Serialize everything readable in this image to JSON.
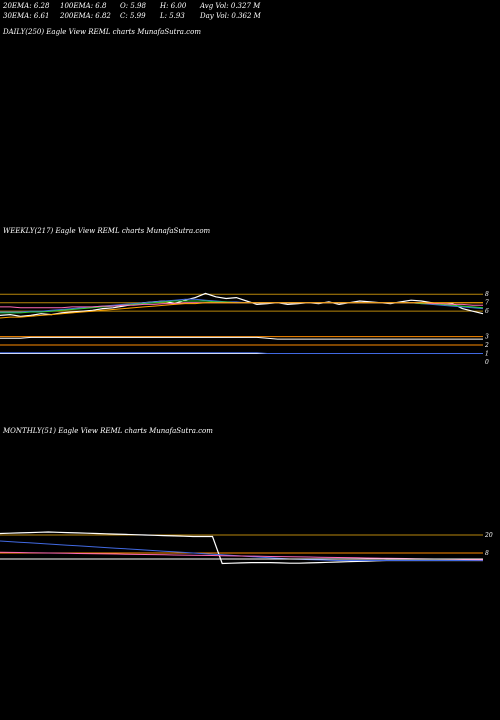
{
  "header": {
    "row1": [
      "20EMA: 6.28",
      "100EMA: 6.8",
      "O: 5.98",
      "H: 6.00",
      "Avg Vol: 0.327 M"
    ],
    "row2": [
      "30EMA: 6.61",
      "200EMA: 6.82",
      "C: 5.99",
      "L: 5.93",
      "Day Vol: 0.362 M"
    ]
  },
  "panels": {
    "daily": {
      "title": "DAILY(250) Eagle View REML charts MunafaSutra.com"
    },
    "weekly": {
      "title": "WEEKLY(217) Eagle View REML charts MunafaSutra.com"
    },
    "monthly": {
      "title": "MONTHLY(51) Eagle View REML charts MunafaSutra.com"
    }
  },
  "chart_data": [
    {
      "type": "line",
      "panel": "daily",
      "series": []
    },
    {
      "type": "line",
      "panel": "weekly",
      "yticks": [
        "8",
        "7",
        "6",
        "3",
        "2",
        "1",
        "0"
      ],
      "ylim": [
        0,
        8.5
      ],
      "series": [
        {
          "color": "#ffffff",
          "values": [
            5.5,
            5.6,
            5.4,
            5.5,
            5.7,
            5.6,
            5.8,
            5.9,
            6.0,
            6.1,
            6.3,
            6.4,
            6.6,
            6.8,
            7.0,
            7.1,
            7.2,
            6.9,
            7.3,
            7.6,
            8.1,
            7.7,
            7.5,
            7.6,
            7.2,
            6.8,
            6.9,
            7.0,
            6.8,
            6.9,
            7.0,
            6.9,
            7.1,
            6.8,
            7.0,
            7.2,
            7.1,
            7.0,
            6.9,
            7.1,
            7.3,
            7.2,
            7.0,
            6.8,
            6.9,
            6.3,
            6.0,
            5.7
          ]
        },
        {
          "color": "#4169e1",
          "values": [
            5.9,
            5.9,
            5.9,
            6.0,
            6.0,
            6.1,
            6.2,
            6.3,
            6.4,
            6.5,
            6.6,
            6.7,
            6.8,
            6.9,
            7.0,
            7.1,
            7.2,
            7.3,
            7.4,
            7.4,
            7.3,
            7.2,
            7.1,
            7.1,
            7.0,
            7.0,
            7.0,
            7.0,
            7.0,
            7.0,
            7.0,
            7.0,
            7.0,
            7.0,
            7.0,
            7.0,
            7.0,
            7.0,
            7.0,
            7.0,
            7.0,
            6.9,
            6.8,
            6.7,
            6.6,
            6.5,
            6.4,
            6.3
          ]
        },
        {
          "color": "#32cd32",
          "values": [
            5.8,
            5.8,
            5.8,
            5.9,
            5.9,
            6.0,
            6.1,
            6.2,
            6.3,
            6.4,
            6.5,
            6.6,
            6.7,
            6.8,
            6.9,
            7.0,
            7.1,
            7.2,
            7.2,
            7.2,
            7.2,
            7.1,
            7.1,
            7.0,
            7.0,
            7.0,
            7.0,
            7.0,
            7.0,
            7.0,
            7.0,
            7.0,
            7.0,
            7.0,
            7.0,
            7.0,
            7.0,
            7.0,
            7.0,
            7.0,
            7.0,
            6.9,
            6.9,
            6.8,
            6.7,
            6.6,
            6.5,
            6.4
          ]
        },
        {
          "color": "#ff69b4",
          "values": [
            6.5,
            6.5,
            6.4,
            6.4,
            6.4,
            6.4,
            6.4,
            6.5,
            6.5,
            6.5,
            6.6,
            6.6,
            6.7,
            6.7,
            6.8,
            6.8,
            6.9,
            6.9,
            7.0,
            7.0,
            7.0,
            7.0,
            7.0,
            7.0,
            7.0,
            7.0,
            7.0,
            7.0,
            7.0,
            7.0,
            7.0,
            7.0,
            7.0,
            7.0,
            7.0,
            7.0,
            7.0,
            7.0,
            7.0,
            7.0,
            7.0,
            7.0,
            6.9,
            6.9,
            6.8,
            6.8,
            6.7,
            6.7
          ]
        },
        {
          "color": "#ffa500",
          "values": [
            5.2,
            5.3,
            5.3,
            5.4,
            5.5,
            5.6,
            5.7,
            5.8,
            5.9,
            6.0,
            6.1,
            6.2,
            6.3,
            6.4,
            6.5,
            6.6,
            6.7,
            6.8,
            6.9,
            6.9,
            7.0,
            7.0,
            7.0,
            7.0,
            7.0,
            7.0,
            7.0,
            7.0,
            7.0,
            7.0,
            7.0,
            7.0,
            7.0,
            7.0,
            7.0,
            7.0,
            7.0,
            7.0,
            7.0,
            7.0,
            7.0,
            7.0,
            7.0,
            7.0,
            7.0,
            7.0,
            7.0,
            7.0
          ]
        },
        {
          "color": "#ffffff",
          "values": [
            2.8,
            2.8,
            2.8,
            2.9,
            2.9,
            2.9,
            2.9,
            2.9,
            2.9,
            2.9,
            2.9,
            2.9,
            2.9,
            2.9,
            2.9,
            2.9,
            2.9,
            2.9,
            2.9,
            2.9,
            2.9,
            2.9,
            2.9,
            2.9,
            2.9,
            2.9,
            2.8,
            2.7,
            2.7,
            2.7,
            2.7,
            2.7,
            2.7,
            2.7,
            2.7,
            2.7,
            2.7,
            2.7,
            2.7,
            2.7,
            2.7,
            2.7,
            2.7,
            2.7,
            2.7,
            2.7,
            2.7,
            2.7
          ]
        },
        {
          "color": "#4169e1",
          "values": [
            1.1,
            1.1,
            1.1,
            1.1,
            1.1,
            1.1,
            1.1,
            1.1,
            1.1,
            1.1,
            1.1,
            1.1,
            1.1,
            1.1,
            1.1,
            1.1,
            1.1,
            1.1,
            1.1,
            1.1,
            1.1,
            1.1,
            1.1,
            1.1,
            1.1,
            1.1,
            1.0,
            1.0,
            1.0,
            1.0,
            1.0,
            1.0,
            1.0,
            1.0,
            1.0,
            1.0,
            1.0,
            1.0,
            1.0,
            1.0,
            1.0,
            1.0,
            1.0,
            1.0,
            1.0,
            1.0,
            1.0,
            1.0
          ]
        }
      ],
      "hlines": [
        {
          "value": 8.0,
          "color": "#b8860b"
        },
        {
          "value": 7.0,
          "color": "#b8860b"
        },
        {
          "value": 6.0,
          "color": "#b8860b"
        },
        {
          "value": 3.0,
          "color": "#ff8c00"
        },
        {
          "value": 2.0,
          "color": "#ff8c00"
        },
        {
          "value": 1.0,
          "color": "#ffffff"
        }
      ]
    },
    {
      "type": "line",
      "panel": "monthly",
      "yticks": [
        "20",
        "8"
      ],
      "ylim": [
        0,
        30
      ],
      "series": [
        {
          "color": "#ffffff",
          "values": [
            21.0,
            21.2,
            21.4,
            21.6,
            21.8,
            22.0,
            21.8,
            21.6,
            21.4,
            21.2,
            21.0,
            20.8,
            20.6,
            20.4,
            20.2,
            20.0,
            19.8,
            19.6,
            19.4,
            19.2,
            19.0,
            19.0,
            19.0,
            1.0,
            1.2,
            1.4,
            1.6,
            1.6,
            1.6,
            1.4,
            1.2,
            1.2,
            1.4,
            1.6,
            1.8,
            2.0,
            2.2,
            2.4,
            2.6,
            2.8,
            3.0,
            3.0,
            3.0,
            3.0,
            3.0,
            3.0,
            3.0,
            3.0,
            3.0,
            3.0,
            3.0
          ]
        },
        {
          "color": "#4169e1",
          "values": [
            16.0,
            15.6,
            15.2,
            14.8,
            14.4,
            14.0,
            13.6,
            13.2,
            12.8,
            12.4,
            12.0,
            11.6,
            11.2,
            10.8,
            10.4,
            10.0,
            9.6,
            9.2,
            8.8,
            8.4,
            8.0,
            7.6,
            7.2,
            6.8,
            6.4,
            6.0,
            5.6,
            5.2,
            4.8,
            4.4,
            4.0,
            3.8,
            3.6,
            3.4,
            3.2,
            3.0,
            3.0,
            3.0,
            3.0,
            3.0,
            3.0,
            3.0,
            3.0,
            3.0,
            3.0,
            3.0,
            3.0,
            3.0,
            3.0,
            3.0,
            3.0
          ]
        },
        {
          "color": "#ff69b4",
          "values": [
            8.5,
            8.4,
            8.3,
            8.2,
            8.1,
            8.0,
            7.9,
            7.8,
            7.7,
            7.6,
            7.5,
            7.4,
            7.3,
            7.2,
            7.1,
            7.0,
            6.9,
            6.8,
            6.7,
            6.6,
            6.5,
            6.4,
            6.3,
            6.2,
            6.1,
            6.0,
            5.9,
            5.8,
            5.7,
            5.6,
            5.5,
            5.4,
            5.3,
            5.2,
            5.1,
            5.0,
            4.9,
            4.8,
            4.7,
            4.6,
            4.5,
            4.4,
            4.3,
            4.2,
            4.1,
            4.0,
            3.9,
            3.8,
            3.7,
            3.6,
            3.5
          ]
        },
        {
          "color": "#ffffff",
          "values": [
            4.0,
            4.0,
            4.0,
            4.0,
            4.0,
            4.0,
            4.0,
            4.0,
            4.0,
            4.0,
            4.0,
            4.0,
            4.0,
            4.0,
            4.0,
            4.0,
            4.0,
            4.0,
            4.0,
            4.0,
            4.0,
            4.0,
            4.0,
            4.0,
            4.0,
            4.0,
            4.0,
            4.0,
            4.0,
            4.0,
            4.0,
            4.0,
            4.0,
            4.0,
            4.0,
            4.0,
            4.0,
            4.0,
            4.0,
            4.0,
            4.0,
            4.0,
            4.0,
            4.0,
            4.0,
            4.0,
            4.0,
            4.0,
            4.0,
            4.0,
            4.0
          ]
        }
      ],
      "hlines": [
        {
          "value": 20.0,
          "color": "#b8860b"
        },
        {
          "value": 8.0,
          "color": "#ff8c00"
        }
      ]
    }
  ]
}
